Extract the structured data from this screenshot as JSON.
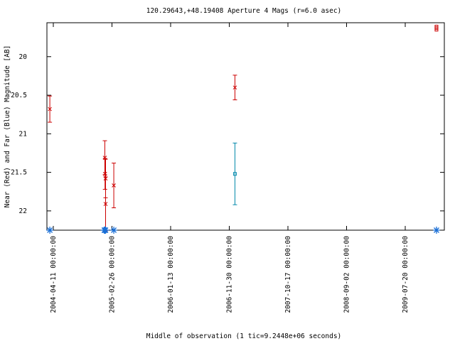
{
  "chart_data": {
    "type": "errorbar",
    "title": "120.29643,+48.19408   Aperture 4 Mags (r=6.0 asec)",
    "x_label": "Middle of observation (1 tic=9.2448e+06 seconds)",
    "y_label": "Near (Red) and Far (Blue) Magnitude [AB]",
    "xlim": [
      "2004-03-07",
      "2010-02-19"
    ],
    "xticks": [
      "2004-04-11 00:00:00",
      "2005-02-26 00:00:00",
      "2006-01-13 00:00:00",
      "2006-11-30 00:00:00",
      "2007-10-17 00:00:00",
      "2008-09-02 00:00:00",
      "2009-07-20 00:00:00"
    ],
    "ylim": [
      22.25,
      19.56
    ],
    "yticks": [
      20,
      20.5,
      21,
      21.5,
      22
    ],
    "series": [
      {
        "color": "#cc0000",
        "marker": "x",
        "x": [
          "2004-03-23",
          "2005-01-18",
          "2005-01-19",
          "2005-01-22",
          "2005-01-22",
          "2005-03-08",
          "2006-12-31"
        ],
        "values": [
          20.68,
          21.31,
          21.52,
          21.58,
          21.91,
          21.67,
          20.4
        ],
        "errors": [
          0.17,
          0.22,
          0.2,
          0.25,
          0.35,
          0.29,
          0.16
        ]
      },
      {
        "color": "#0088aa",
        "marker": "square",
        "x": [
          "2006-12-31"
        ],
        "values": [
          21.52
        ],
        "errors": [
          0.4
        ]
      },
      {
        "color": "#cc0000",
        "marker": "square",
        "x": [
          "2010-01-07",
          "2010-01-07",
          "2010-01-07"
        ],
        "values": [
          19.61,
          19.63,
          19.65
        ]
      }
    ],
    "observation_marks": {
      "color": "#1a6fd6",
      "x": [
        "2004-03-23",
        "2005-01-15",
        "2005-01-18",
        "2005-01-22",
        "2005-03-08",
        "2010-01-07"
      ]
    }
  }
}
